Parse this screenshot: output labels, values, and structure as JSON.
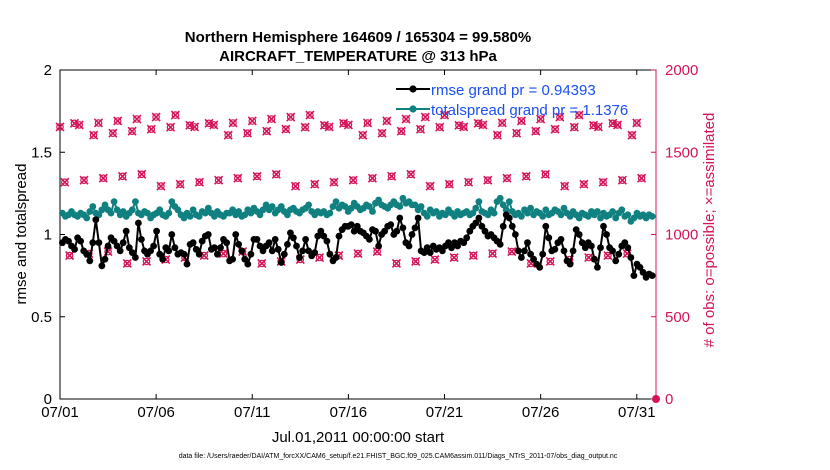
{
  "chart_data": {
    "type": "line",
    "title_line1": "Northern Hemisphere 164609 / 165304 = 99.580%",
    "title_line2": "AIRCRAFT_TEMPERATURE @ 313 hPa",
    "xlabel": "Jul.01,2011 00:00:00 start",
    "ylabel_left": "rmse and totalspread",
    "ylabel_right": "# of obs: o=possible; ×=assimilated",
    "footer": "data file: /Users/raeder/DAI/ATM_forcXX/CAM6_setup/f.e21.FHIST_BGC.f09_025.CAM6assim.011/Diags_NTrS_2011-07/obs_diag_output.nc",
    "x_range_days": [
      1,
      32
    ],
    "x_ticks": [
      {
        "day": 1,
        "label": "07/01"
      },
      {
        "day": 6,
        "label": "07/06"
      },
      {
        "day": 11,
        "label": "07/11"
      },
      {
        "day": 16,
        "label": "07/16"
      },
      {
        "day": 21,
        "label": "07/21"
      },
      {
        "day": 26,
        "label": "07/26"
      },
      {
        "day": 31,
        "label": "07/31"
      }
    ],
    "y_left_range": [
      0,
      2
    ],
    "y_left_ticks": [
      "0",
      "0.5",
      "1",
      "1.5",
      "2"
    ],
    "y_right_range": [
      0,
      2000
    ],
    "y_right_ticks": [
      "0",
      "500",
      "1000",
      "1500",
      "2000"
    ],
    "colors": {
      "rmse": "#000000",
      "spread": "#108080",
      "obs": "#d4145a",
      "legend_text": "#1a4ff0"
    },
    "legend": {
      "placement": "top-right",
      "rmse_label": "rmse grand pr = 0.94393",
      "spread_label": "totalspread grand pr = 1.1376"
    },
    "obs_cycle_pattern": [
      1690,
      1330,
      860,
      1640
    ],
    "series": [
      {
        "name": "rmse",
        "values": [
          0.95,
          0.97,
          0.96,
          0.93,
          0.91,
          0.98,
          0.96,
          0.9,
          0.88,
          0.84,
          0.95,
          1.09,
          0.95,
          0.81,
          0.85,
          0.93,
          0.98,
          0.96,
          0.93,
          0.9,
          0.95,
          1.02,
          0.92,
          0.89,
          0.86,
          1.07,
          0.97,
          0.9,
          0.88,
          0.9,
          0.93,
          1.02,
          0.88,
          0.85,
          0.92,
          0.9,
          1.0,
          0.92,
          0.88,
          0.89,
          0.88,
          0.82,
          0.94,
          0.95,
          0.91,
          0.88,
          0.96,
          0.99,
          1.0,
          0.91,
          0.92,
          0.88,
          0.92,
          0.97,
          0.95,
          0.84,
          0.85,
          1.0,
          0.94,
          0.9,
          0.85,
          0.82,
          0.88,
          0.97,
          0.97,
          0.93,
          0.9,
          0.93,
          0.95,
          0.9,
          0.97,
          0.91,
          0.83,
          0.88,
          0.94,
          1.01,
          0.98,
          0.93,
          0.86,
          0.9,
          0.97,
          0.9,
          0.87,
          0.89,
          0.99,
          1.02,
          0.99,
          0.96,
          0.88,
          0.84,
          0.86,
          0.99,
          1.03,
          1.05,
          1.05,
          1.06,
          1.02,
          1.05,
          1.02,
          1.01,
          0.99,
          0.97,
          1.03,
          1.02,
          0.93,
          1.0,
          1.02,
          1.05,
          1.06,
          1.0,
          1.02,
          1.1,
          1.04,
          0.95,
          0.93,
          1.0,
          1.04,
          1.1,
          0.9,
          0.89,
          0.92,
          0.89,
          0.93,
          0.91,
          0.92,
          0.9,
          0.93,
          0.95,
          0.92,
          0.95,
          0.93,
          0.96,
          0.95,
          0.98,
          1.02,
          1.05,
          1.07,
          1.1,
          1.05,
          1.02,
          0.99,
          1.0,
          0.98,
          0.96,
          0.94,
          1.05,
          1.12,
          1.1,
          1.05,
          1.0,
          0.9,
          0.86,
          0.9,
          0.95,
          0.88,
          0.85,
          0.82,
          0.8,
          0.88,
          1.05,
          0.98,
          0.9,
          0.91,
          0.95,
          0.97,
          0.9,
          0.84,
          0.82,
          0.9,
          1.03,
          1.0,
          0.95,
          0.92,
          0.95,
          0.93,
          0.85,
          0.8,
          0.92,
          1.05,
          1.0,
          0.92,
          0.9,
          0.84,
          0.88,
          0.93,
          0.95,
          0.92,
          0.86,
          0.75,
          0.82,
          0.8,
          0.77,
          0.74,
          0.76,
          0.75
        ]
      },
      {
        "name": "totalspread",
        "values": [
          1.13,
          1.11,
          1.12,
          1.14,
          1.12,
          1.11,
          1.13,
          1.12,
          1.1,
          1.14,
          1.17,
          1.13,
          1.12,
          1.15,
          1.18,
          1.15,
          1.13,
          1.2,
          1.15,
          1.12,
          1.14,
          1.11,
          1.13,
          1.15,
          1.2,
          1.13,
          1.12,
          1.14,
          1.13,
          1.1,
          1.12,
          1.13,
          1.15,
          1.12,
          1.11,
          1.13,
          1.2,
          1.17,
          1.15,
          1.12,
          1.1,
          1.13,
          1.11,
          1.15,
          1.12,
          1.11,
          1.14,
          1.13,
          1.16,
          1.13,
          1.11,
          1.14,
          1.12,
          1.11,
          1.13,
          1.13,
          1.15,
          1.12,
          1.14,
          1.11,
          1.12,
          1.15,
          1.13,
          1.16,
          1.14,
          1.12,
          1.15,
          1.18,
          1.15,
          1.17,
          1.13,
          1.15,
          1.17,
          1.14,
          1.12,
          1.15,
          1.16,
          1.14,
          1.13,
          1.15,
          1.16,
          1.18,
          1.14,
          1.12,
          1.14,
          1.13,
          1.14,
          1.12,
          1.13,
          1.17,
          1.2,
          1.16,
          1.18,
          1.17,
          1.14,
          1.16,
          1.19,
          1.17,
          1.15,
          1.16,
          1.18,
          1.17,
          1.14,
          1.19,
          1.21,
          1.18,
          1.17,
          1.16,
          1.18,
          1.2,
          1.18,
          1.17,
          1.22,
          1.19,
          1.2,
          1.18,
          1.18,
          1.15,
          1.17,
          1.13,
          1.11,
          1.15,
          1.13,
          1.14,
          1.11,
          1.13,
          1.12,
          1.15,
          1.13,
          1.11,
          1.14,
          1.12,
          1.13,
          1.14,
          1.12,
          1.13,
          1.16,
          1.2,
          1.14,
          1.13,
          1.12,
          1.15,
          1.13,
          1.2,
          1.22,
          1.18,
          1.15,
          1.2,
          1.14,
          1.12,
          1.13,
          1.11,
          1.15,
          1.13,
          1.16,
          1.12,
          1.14,
          1.13,
          1.11,
          1.15,
          1.12,
          1.13,
          1.15,
          1.14,
          1.12,
          1.16,
          1.13,
          1.11,
          1.14,
          1.12,
          1.1,
          1.13,
          1.12,
          1.11,
          1.14,
          1.12,
          1.14,
          1.1,
          1.13,
          1.11,
          1.12,
          1.14,
          1.1,
          1.13,
          1.15,
          1.11,
          1.12,
          1.08,
          1.1,
          1.13,
          1.11,
          1.12,
          1.1,
          1.12,
          1.11
        ]
      }
    ]
  }
}
